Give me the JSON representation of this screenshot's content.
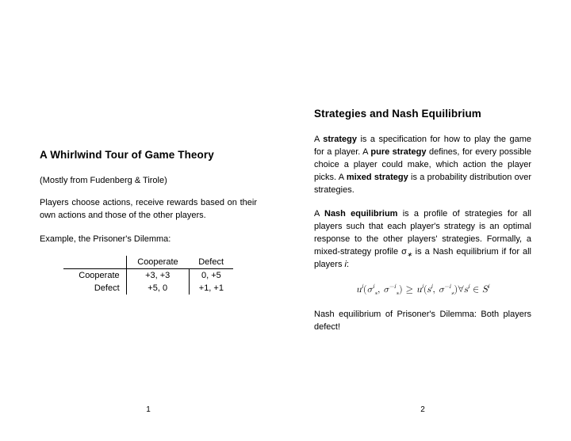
{
  "page_left": {
    "title": "A Whirlwind Tour of Game Theory",
    "source_note": "(Mostly from Fudenberg & Tirole)",
    "intro": "Players choose actions, receive rewards based on their own actions and those of the other players.",
    "example_label": "Example, the Prisoner's Dilemma:",
    "table": {
      "col_labels": [
        "Cooperate",
        "Defect"
      ],
      "row_labels": [
        "Cooperate",
        "Defect"
      ],
      "cells": [
        [
          "+3, +3",
          "0, +5"
        ],
        [
          "+5, 0",
          "+1, +1"
        ]
      ]
    },
    "page_num": "1"
  },
  "page_right": {
    "title": "Strategies and Nash Equilibrium",
    "p1_parts": {
      "a": "A ",
      "strategy": "strategy",
      "b": " is a specification for how to play the game for a player.  A ",
      "pure": "pure strategy",
      "c": " defines, for every possible choice a player could make, which action the player picks. A ",
      "mixed": "mixed strategy",
      "d": " is a probability distribution over strategies."
    },
    "p2_parts": {
      "a": "A ",
      "nash": "Nash equilibrium",
      "b": " is a profile of strategies for all players such that each player's strategy is an optimal response to the other players' strategies.  Formally, a mixed-strategy profile σ",
      "star": "∗",
      "c": " is a Nash equilibrium if for all players ",
      "i": "i",
      "colon": ":"
    },
    "formula": "u^{i}(σ^{i}_{∗}, σ^{-i}_{∗}) ≥ u^{i}(s^{i}, σ^{-i}_{∗}) ∀ s^{i} ∈ S^{i}",
    "conclusion": "Nash equilibrium of Prisoner's Dilemma: Both players defect!",
    "page_num": "2"
  }
}
